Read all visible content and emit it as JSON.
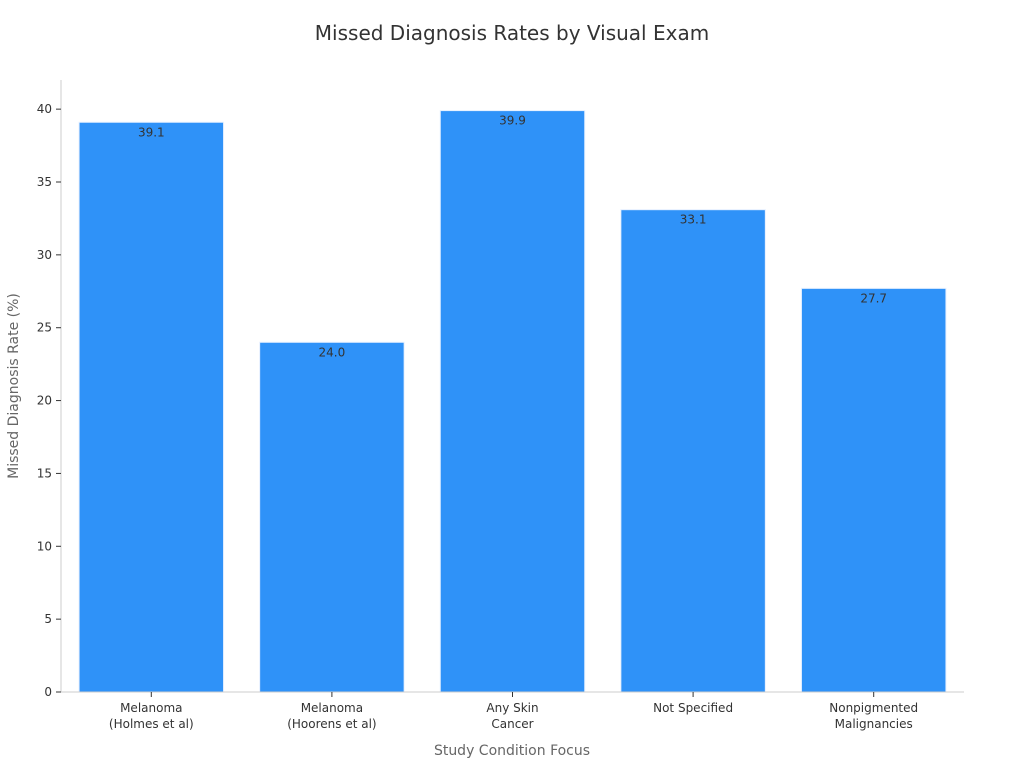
{
  "chart_data": {
    "type": "bar",
    "title": "Missed Diagnosis Rates by Visual Exam",
    "xlabel": "Study Condition Focus",
    "ylabel": "Missed Diagnosis Rate (%)",
    "categories": [
      [
        "Melanoma",
        "(Holmes et al)"
      ],
      [
        "Melanoma",
        "(Hoorens et al)"
      ],
      [
        "Any Skin",
        "Cancer"
      ],
      [
        "Not Specified"
      ],
      [
        "Nonpigmented",
        "Malignancies"
      ]
    ],
    "values": [
      39.1,
      24.0,
      39.9,
      33.1,
      27.7
    ],
    "value_labels": [
      "39.1",
      "24.0",
      "39.9",
      "33.1",
      "27.7"
    ],
    "ylim": [
      0,
      42
    ],
    "yticks": [
      0,
      5,
      10,
      15,
      20,
      25,
      30,
      35,
      40
    ],
    "grid": false,
    "legend": "none",
    "bar_color": "#2f92f8"
  }
}
